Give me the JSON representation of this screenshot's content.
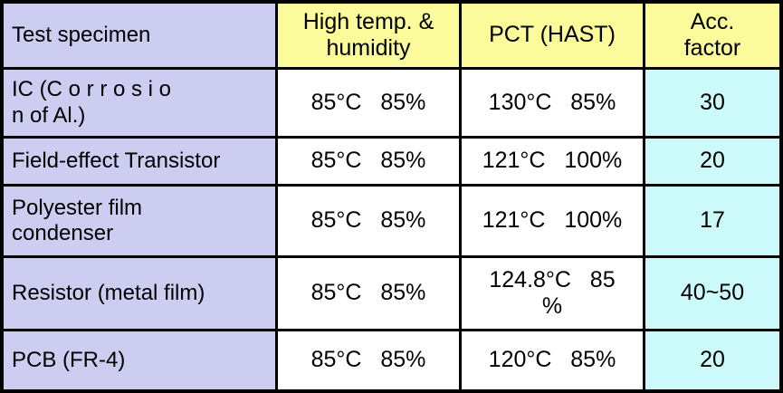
{
  "colors": {
    "header_bg": "#fbfb9b",
    "specimen_col_bg": "#cdcdf2",
    "condition_col_bg": "#ffffff",
    "factor_col_bg": "#ccfafa",
    "grid_border": "#000000",
    "text": "#000000"
  },
  "table": {
    "columns": [
      {
        "label": "Test specimen"
      },
      {
        "label": [
          "High temp. &",
          "humidity"
        ]
      },
      {
        "label": "PCT (HAST)"
      },
      {
        "label": [
          "Acc.",
          "factor"
        ]
      }
    ],
    "rows": [
      {
        "specimen": [
          "IC (C o r r o s i o",
          "n of Al.)"
        ],
        "high_temp_humidity": "85°C   85%",
        "pct_hast": "130°C   85%",
        "acc_factor": "30"
      },
      {
        "specimen": "Field-effect Transistor",
        "high_temp_humidity": "85°C   85%",
        "pct_hast": "121°C   100%",
        "acc_factor": "20"
      },
      {
        "specimen": [
          "Polyester film",
          "condenser"
        ],
        "high_temp_humidity": "85°C   85%",
        "pct_hast": "121°C   100%",
        "acc_factor": "17"
      },
      {
        "specimen": "Resistor (metal film)",
        "high_temp_humidity": "85°C   85%",
        "pct_hast": [
          "124.8°C   85",
          "%"
        ],
        "acc_factor": "40~50"
      },
      {
        "specimen": "PCB (FR-4)",
        "high_temp_humidity": "85°C   85%",
        "pct_hast": "120°C   85%",
        "acc_factor": "20"
      }
    ]
  }
}
